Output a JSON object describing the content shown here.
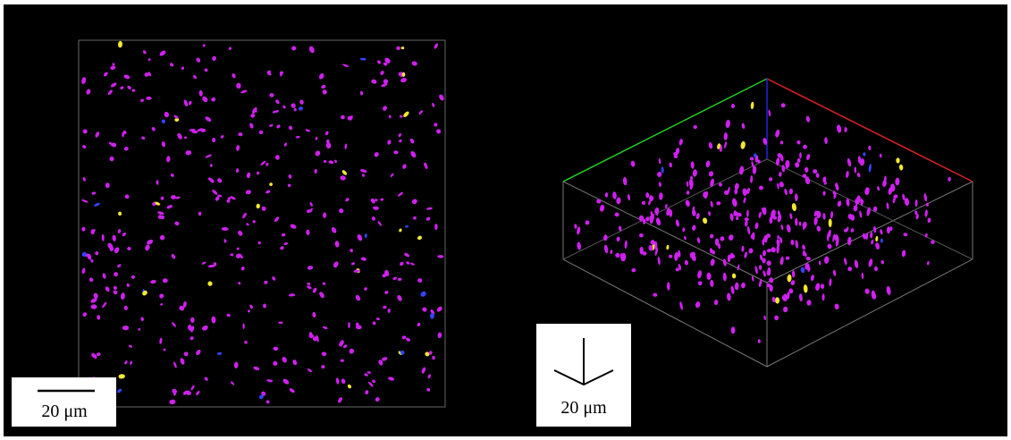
{
  "left_panel": {
    "scale_bar_label": "20 μm"
  },
  "right_panel": {
    "scale_bar_label": "20 μm"
  }
}
